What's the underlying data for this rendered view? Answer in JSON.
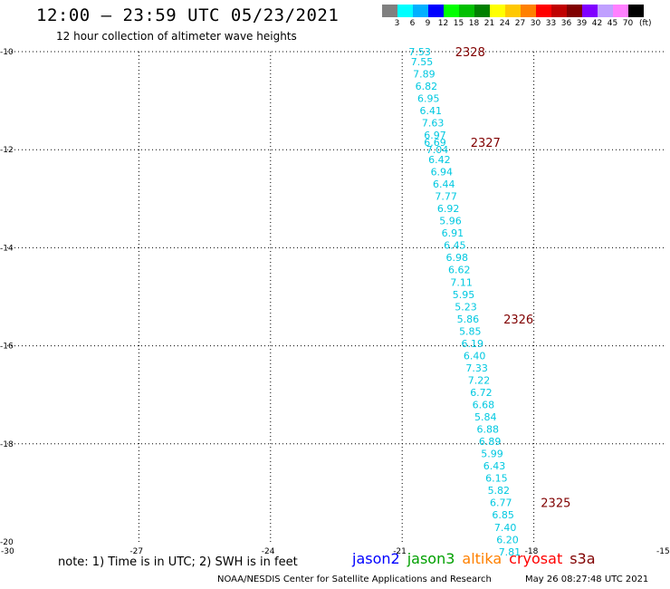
{
  "header": {
    "title": "12:00 — 23:59 UTC 05/23/2021",
    "subtitle": "12 hour collection of altimeter wave heights"
  },
  "colorbar": {
    "labels": [
      "3",
      "6",
      "9",
      "12",
      "15",
      "18",
      "21",
      "24",
      "27",
      "30",
      "33",
      "36",
      "39",
      "42",
      "45",
      "70"
    ],
    "unit": "(ft)",
    "colors": [
      "#808080",
      "#00ffff",
      "#00b0ff",
      "#0000ff",
      "#00ff00",
      "#00c000",
      "#008000",
      "#ffff00",
      "#ffc800",
      "#ff8000",
      "#ff0000",
      "#c00000",
      "#800000",
      "#8000ff",
      "#c0a0ff",
      "#ff80ff",
      "#000000"
    ]
  },
  "note": "note: 1) Time is in UTC; 2) SWH is in feet",
  "legend": [
    {
      "label": "jason2",
      "color": "#0000ff"
    },
    {
      "label": "jason3",
      "color": "#00a000"
    },
    {
      "label": "altika",
      "color": "#ff8000"
    },
    {
      "label": "cryosat",
      "color": "#ff0000"
    },
    {
      "label": "s3a",
      "color": "#800000"
    }
  ],
  "footer": {
    "left": "NOAA/NESDIS Center for Satellite Applications and Research",
    "right": "May 26 08:27:48 UTC 2021"
  },
  "chart_data": {
    "type": "scatter",
    "xlim": [
      -30,
      -15
    ],
    "ylim": [
      -20,
      -10
    ],
    "xticks": [
      -30,
      -27,
      -24,
      -21,
      -18,
      -15
    ],
    "yticks": [
      -10,
      -12,
      -14,
      -16,
      -18,
      -20
    ],
    "grid": true,
    "point_color": "#00c8e0",
    "time_color": "#800000",
    "points": [
      {
        "lon": -20.6,
        "lat": -10.0,
        "swh": "7.53"
      },
      {
        "lon": -20.55,
        "lat": -10.2,
        "swh": "7.55"
      },
      {
        "lon": -20.5,
        "lat": -10.45,
        "swh": "7.89"
      },
      {
        "lon": -20.45,
        "lat": -10.7,
        "swh": "6.82"
      },
      {
        "lon": -20.4,
        "lat": -10.95,
        "swh": "6.95"
      },
      {
        "lon": -20.35,
        "lat": -11.2,
        "swh": "6.41"
      },
      {
        "lon": -20.3,
        "lat": -11.45,
        "swh": "7.63"
      },
      {
        "lon": -20.25,
        "lat": -11.7,
        "swh": "6.97"
      },
      {
        "lon": -20.25,
        "lat": -11.85,
        "swh": "6.69"
      },
      {
        "lon": -20.2,
        "lat": -12.0,
        "swh": "7.04"
      },
      {
        "lon": -20.15,
        "lat": -12.2,
        "swh": "6.42"
      },
      {
        "lon": -20.1,
        "lat": -12.45,
        "swh": "6.94"
      },
      {
        "lon": -20.05,
        "lat": -12.7,
        "swh": "6.44"
      },
      {
        "lon": -20.0,
        "lat": -12.95,
        "swh": "7.77"
      },
      {
        "lon": -19.95,
        "lat": -13.2,
        "swh": "6.92"
      },
      {
        "lon": -19.9,
        "lat": -13.45,
        "swh": "5.96"
      },
      {
        "lon": -19.85,
        "lat": -13.7,
        "swh": "6.91"
      },
      {
        "lon": -19.8,
        "lat": -13.95,
        "swh": "6.45"
      },
      {
        "lon": -19.75,
        "lat": -14.2,
        "swh": "6.98"
      },
      {
        "lon": -19.7,
        "lat": -14.45,
        "swh": "6.62"
      },
      {
        "lon": -19.65,
        "lat": -14.7,
        "swh": "7.11"
      },
      {
        "lon": -19.6,
        "lat": -14.95,
        "swh": "5.95"
      },
      {
        "lon": -19.55,
        "lat": -15.2,
        "swh": "5.23"
      },
      {
        "lon": -19.5,
        "lat": -15.45,
        "swh": "5.86"
      },
      {
        "lon": -19.45,
        "lat": -15.7,
        "swh": "5.85"
      },
      {
        "lon": -19.4,
        "lat": -15.95,
        "swh": "6.19"
      },
      {
        "lon": -19.35,
        "lat": -16.2,
        "swh": "6.40"
      },
      {
        "lon": -19.3,
        "lat": -16.45,
        "swh": "7.33"
      },
      {
        "lon": -19.25,
        "lat": -16.7,
        "swh": "7.22"
      },
      {
        "lon": -19.2,
        "lat": -16.95,
        "swh": "6.72"
      },
      {
        "lon": -19.15,
        "lat": -17.2,
        "swh": "6.68"
      },
      {
        "lon": -19.1,
        "lat": -17.45,
        "swh": "5.84"
      },
      {
        "lon": -19.05,
        "lat": -17.7,
        "swh": "6.88"
      },
      {
        "lon": -19.0,
        "lat": -17.95,
        "swh": "6.89"
      },
      {
        "lon": -18.95,
        "lat": -18.2,
        "swh": "5.99"
      },
      {
        "lon": -18.9,
        "lat": -18.45,
        "swh": "6.43"
      },
      {
        "lon": -18.85,
        "lat": -18.7,
        "swh": "6.15"
      },
      {
        "lon": -18.8,
        "lat": -18.95,
        "swh": "5.82"
      },
      {
        "lon": -18.75,
        "lat": -19.2,
        "swh": "6.77"
      },
      {
        "lon": -18.7,
        "lat": -19.45,
        "swh": "6.85"
      },
      {
        "lon": -18.65,
        "lat": -19.7,
        "swh": "7.40"
      },
      {
        "lon": -18.6,
        "lat": -19.95,
        "swh": "6.20"
      },
      {
        "lon": -18.55,
        "lat": -20.2,
        "swh": "7.81"
      }
    ],
    "time_labels": [
      {
        "lon": -19.45,
        "lat": -10.0,
        "text": "2328"
      },
      {
        "lon": -19.1,
        "lat": -11.85,
        "text": "2327"
      },
      {
        "lon": -18.35,
        "lat": -15.45,
        "text": "2326"
      },
      {
        "lon": -17.5,
        "lat": -19.2,
        "text": "2325"
      }
    ]
  }
}
